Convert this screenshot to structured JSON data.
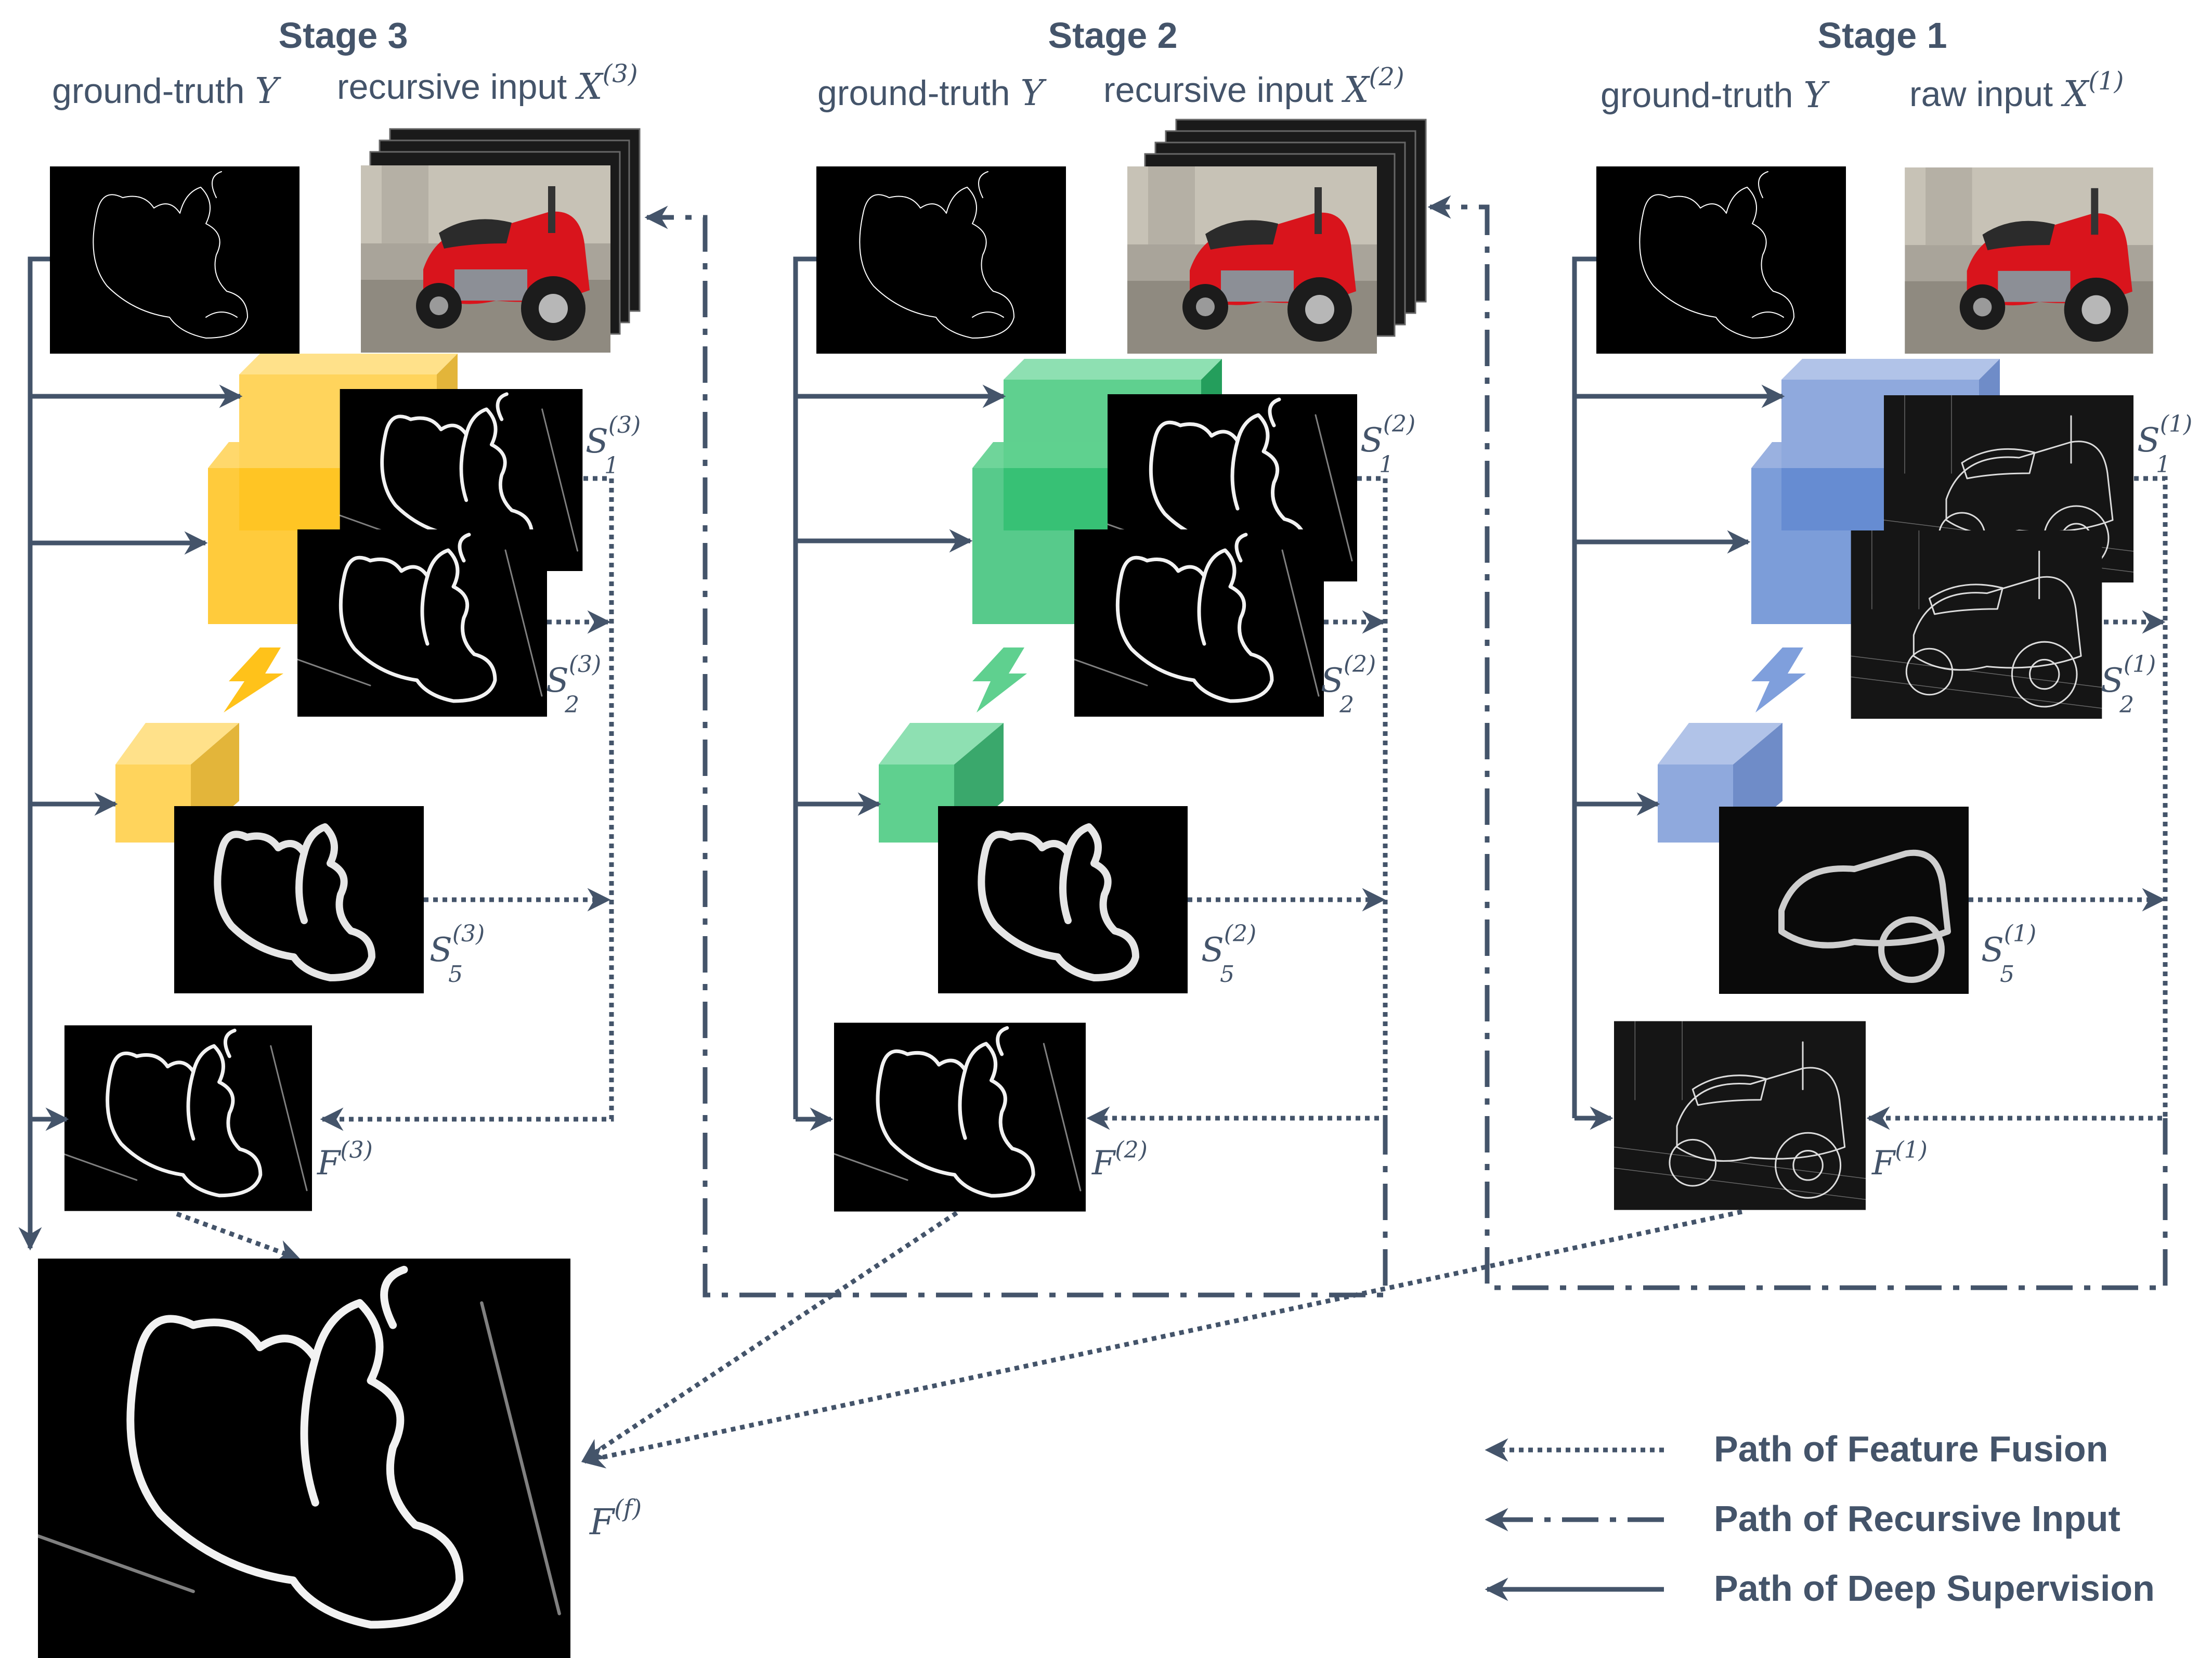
{
  "stages": [
    {
      "id": "stage3",
      "title": "Stage 3",
      "gt_label": "ground-truth",
      "gt_var": "Y",
      "input_label": "recursive input",
      "input_var": "X",
      "input_sup": "(3)",
      "s1_sup": "(3)",
      "s2_sup": "(3)",
      "s5_sup": "(3)",
      "f_sup": "(3)"
    },
    {
      "id": "stage2",
      "title": "Stage 2",
      "gt_label": "ground-truth",
      "gt_var": "Y",
      "input_label": "recursive input",
      "input_var": "X",
      "input_sup": "(2)",
      "s1_sup": "(2)",
      "s2_sup": "(2)",
      "s5_sup": "(2)",
      "f_sup": "(2)"
    },
    {
      "id": "stage1",
      "title": "Stage 1",
      "gt_label": "ground-truth",
      "gt_var": "Y",
      "input_label": "raw input",
      "input_var": "X",
      "input_sup": "(1)",
      "s1_sup": "(1)",
      "s2_sup": "(1)",
      "s5_sup": "(1)",
      "f_sup": "(1)"
    }
  ],
  "symbols": {
    "S": "S",
    "F": "F",
    "sub1": "1",
    "sub2": "2",
    "sub5": "5"
  },
  "final": {
    "var": "F",
    "sup": "(f)"
  },
  "legend": [
    {
      "label": "Path of Feature Fusion",
      "style": "dotted"
    },
    {
      "label": "Path of Recursive Input",
      "style": "dash-dot"
    },
    {
      "label": "Path of Deep Supervision",
      "style": "solid"
    }
  ],
  "colors": {
    "stage3": "#ffc21a",
    "stage2": "#2dbd6e",
    "stage1": "#5b84cf",
    "line": "#44546a",
    "scooter": "#d9141c"
  }
}
